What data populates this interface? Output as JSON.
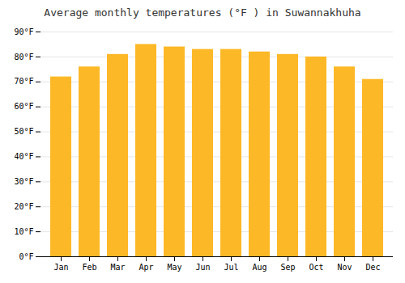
{
  "chart_data": {
    "type": "bar",
    "title": "Average monthly temperatures (°F ) in Suwannakhuha",
    "categories": [
      "Jan",
      "Feb",
      "Mar",
      "Apr",
      "May",
      "Jun",
      "Jul",
      "Aug",
      "Sep",
      "Oct",
      "Nov",
      "Dec"
    ],
    "values": [
      72,
      76,
      81,
      85,
      84,
      83,
      83,
      82,
      81,
      80,
      76,
      71
    ],
    "color": "#FDB827",
    "ylim": [
      0,
      90
    ],
    "yticks": [
      {
        "value": 0,
        "label": "0°F"
      },
      {
        "value": 10,
        "label": "10°F"
      },
      {
        "value": 20,
        "label": "20°F"
      },
      {
        "value": 30,
        "label": "30°F"
      },
      {
        "value": 40,
        "label": "40°F"
      },
      {
        "value": 50,
        "label": "50°F"
      },
      {
        "value": 60,
        "label": "60°F"
      },
      {
        "value": 70,
        "label": "70°F"
      },
      {
        "value": 80,
        "label": "80°F"
      },
      {
        "value": 90,
        "label": "90°F"
      }
    ],
    "grid": true
  }
}
